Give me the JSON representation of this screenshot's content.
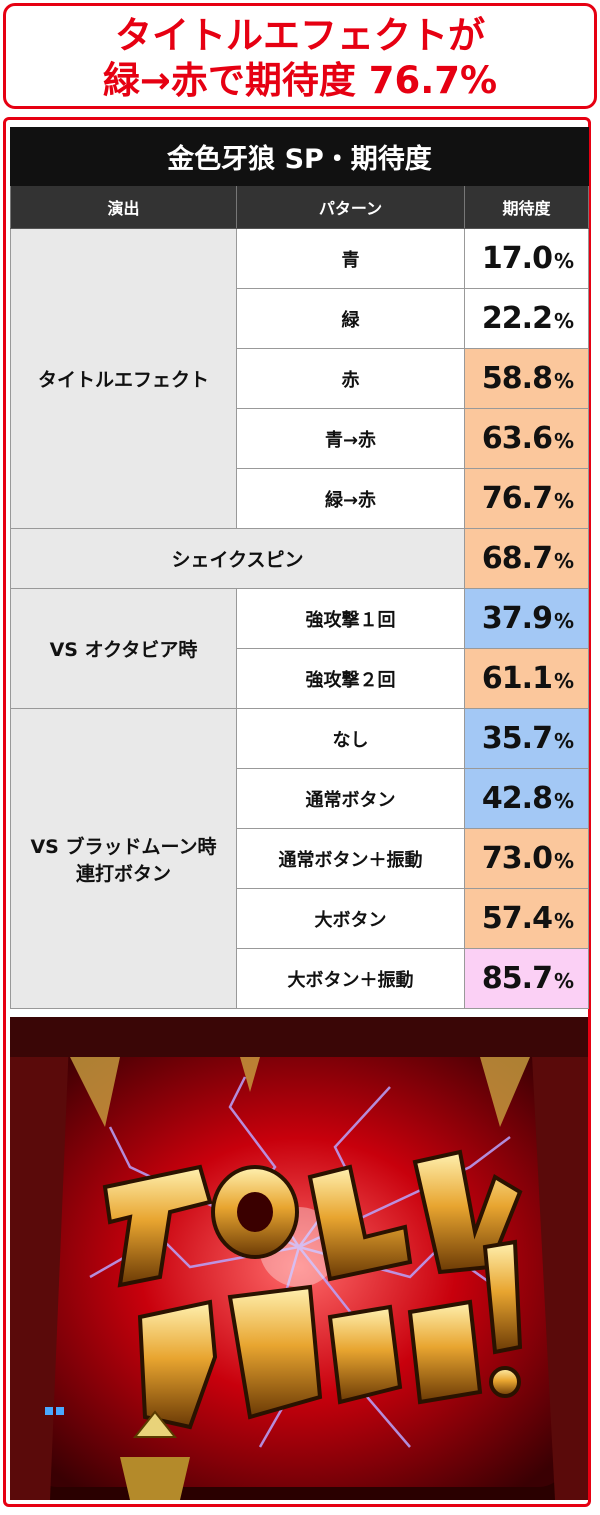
{
  "headline": {
    "line1": "タイトルエフェクトが",
    "line2": "緑→赤で期待度 76.7%"
  },
  "table": {
    "title": "金色牙狼 SP・期待度",
    "headers": [
      "演出",
      "パターン",
      "期待度"
    ],
    "pct_symbol": "%",
    "groups": [
      {
        "effect": "タイトルエフェクト",
        "rows": [
          {
            "pattern": "青",
            "value": "17.0",
            "color": "#ffffff"
          },
          {
            "pattern": "緑",
            "value": "22.2",
            "color": "#ffffff"
          },
          {
            "pattern": "赤",
            "value": "58.8",
            "color": "#fbc79c"
          },
          {
            "pattern": "青→赤",
            "value": "63.6",
            "color": "#fbc79c"
          },
          {
            "pattern": "緑→赤",
            "value": "76.7",
            "color": "#fbc79c"
          }
        ]
      },
      {
        "effect": "シェイクスピン",
        "rows": [
          {
            "value": "68.7",
            "color": "#fbc79c"
          }
        ]
      },
      {
        "effect": "VS オクタビア時",
        "rows": [
          {
            "pattern": "強攻撃１回",
            "value": "37.9",
            "color": "#a3c8f5"
          },
          {
            "pattern": "強攻撃２回",
            "value": "61.1",
            "color": "#fbc79c"
          }
        ]
      },
      {
        "effect_line1": "VS ブラッドムーン時",
        "effect_line2": "連打ボタン",
        "rows": [
          {
            "pattern": "なし",
            "value": "35.7",
            "color": "#a3c8f5"
          },
          {
            "pattern": "通常ボタン",
            "value": "42.8",
            "color": "#a3c8f5"
          },
          {
            "pattern": "通常ボタン＋振動",
            "value": "73.0",
            "color": "#fbc79c"
          },
          {
            "pattern": "大ボタン",
            "value": "57.4",
            "color": "#fbc79c"
          },
          {
            "pattern": "大ボタン＋振動",
            "value": "85.7",
            "color": "#fbd0f5"
          }
        ]
      }
    ]
  },
  "scene": {
    "colors": {
      "bg": "#b0000a",
      "lightning": "#9b7cff",
      "gold": "#e8b040"
    }
  }
}
